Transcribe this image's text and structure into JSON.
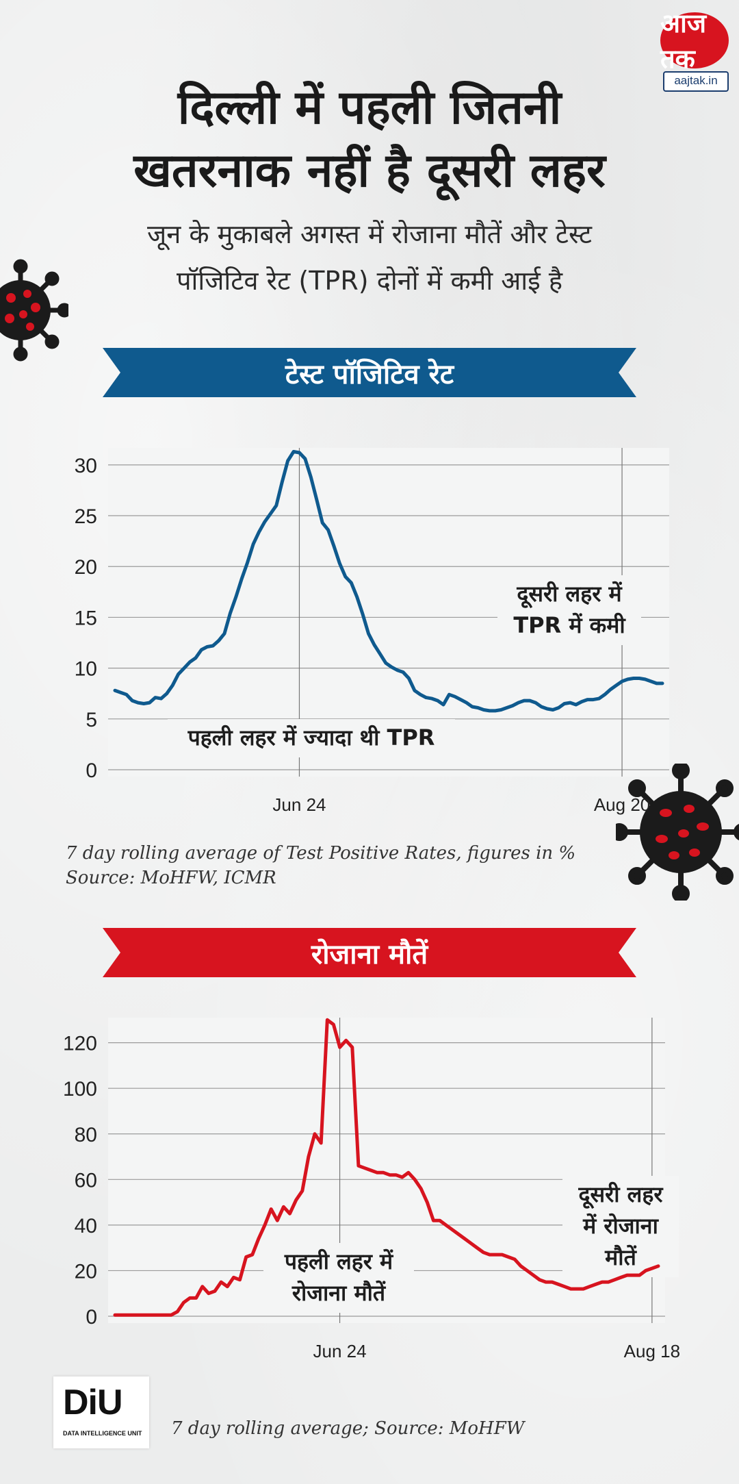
{
  "brand": {
    "logo_text": "आज तक",
    "url": "aajtak.in",
    "unit_logo": "DiU",
    "unit_name": "DATA INTELLIGENCE UNIT"
  },
  "headline": {
    "line1": "दिल्ली में पहली जितनी",
    "line2": "खतरनाक नहीं है दूसरी लहर"
  },
  "subhead": {
    "line1": "जून के मुकाबले अगस्त में रोजाना मौतें और टेस्ट",
    "line2": "पॉजिटिव रेट (TPR) दोनों में कमी आई है"
  },
  "colors": {
    "blue": "#0f5a8e",
    "red": "#d7141f",
    "bg": "#eceded"
  },
  "chart_data": [
    {
      "type": "line",
      "banner": "टेस्ट पॉजिटिव रेट",
      "y_ticks": [
        "30",
        "25",
        "20",
        "15",
        "10",
        "5",
        "0"
      ],
      "ylim": [
        0,
        31
      ],
      "x_tick_labels": [
        "Jun 24",
        "Aug 20"
      ],
      "x_tick_index": [
        32,
        88
      ],
      "series_color": "#0f5a8e",
      "values": [
        7.8,
        7.6,
        7.4,
        6.8,
        6.6,
        6.5,
        6.6,
        7.1,
        7.0,
        7.5,
        8.3,
        9.4,
        10.0,
        10.6,
        11.0,
        11.8,
        12.1,
        12.2,
        12.7,
        13.4,
        15.4,
        17.0,
        18.8,
        20.4,
        22.2,
        23.4,
        24.4,
        25.2,
        26.0,
        28.3,
        30.4,
        31.3,
        31.2,
        30.6,
        28.8,
        26.6,
        24.3,
        23.6,
        22.0,
        20.3,
        19.0,
        18.4,
        17.0,
        15.3,
        13.4,
        12.3,
        11.4,
        10.5,
        10.1,
        9.8,
        9.6,
        9.0,
        7.8,
        7.4,
        7.1,
        7.0,
        6.8,
        6.4,
        7.4,
        7.2,
        6.9,
        6.6,
        6.2,
        6.1,
        5.9,
        5.8,
        5.8,
        5.9,
        6.1,
        6.3,
        6.6,
        6.8,
        6.8,
        6.6,
        6.2,
        6.0,
        5.9,
        6.1,
        6.5,
        6.6,
        6.4,
        6.7,
        6.9,
        6.9,
        7.0,
        7.4,
        7.9,
        8.3,
        8.7,
        8.9,
        9.0,
        9.0,
        8.9,
        8.7,
        8.5,
        8.5
      ],
      "annotations": [
        {
          "text_lines": [
            "पहली लहर में ज्यादा थी TPR"
          ]
        },
        {
          "text_lines": [
            "दूसरी लहर में",
            "TPR में कमी"
          ]
        }
      ],
      "note_lines": [
        "7 day rolling average of Test Positive Rates, figures in %",
        "Source: MoHFW, ICMR"
      ]
    },
    {
      "type": "line",
      "banner": "रोजाना मौतें",
      "y_ticks": [
        "120",
        "100",
        "80",
        "60",
        "40",
        "20",
        "0"
      ],
      "ylim": [
        0,
        128
      ],
      "x_tick_labels": [
        "Jun 24",
        "Aug 18"
      ],
      "x_tick_index": [
        36,
        86
      ],
      "series_color": "#d7141f",
      "values": [
        0.5,
        0.5,
        0.5,
        0.5,
        0.5,
        0.5,
        0.5,
        0.5,
        0.5,
        0.5,
        2.0,
        6.0,
        8.0,
        8.0,
        13.0,
        10.0,
        11.0,
        15.0,
        13.0,
        17.0,
        16.0,
        26.0,
        27.0,
        34.0,
        40.0,
        47.0,
        42.0,
        48.0,
        45.0,
        51.0,
        55.0,
        70.0,
        80.0,
        76.0,
        130.0,
        128.0,
        118.0,
        121.0,
        118.0,
        66.0,
        65.0,
        64.0,
        63.0,
        63.0,
        62.0,
        62.0,
        61.0,
        63.0,
        60.0,
        56.0,
        50.0,
        42.0,
        42.0,
        40.0,
        38.0,
        36.0,
        34.0,
        32.0,
        30.0,
        28.0,
        27.0,
        27.0,
        27.0,
        26.0,
        25.0,
        22.0,
        20.0,
        18.0,
        16.0,
        15.0,
        15.0,
        14.0,
        13.0,
        12.0,
        12.0,
        12.0,
        13.0,
        14.0,
        15.0,
        15.0,
        16.0,
        17.0,
        18.0,
        18.0,
        18.0,
        20.0,
        21.0,
        22.0
      ],
      "annotations": [
        {
          "text_lines": [
            "पहली लहर में",
            "रोजाना मौतें"
          ]
        },
        {
          "text_lines": [
            "दूसरी लहर",
            "में रोजाना",
            "मौतें"
          ]
        }
      ],
      "note_lines": [
        "7 day rolling average; Source: MoHFW"
      ]
    }
  ]
}
